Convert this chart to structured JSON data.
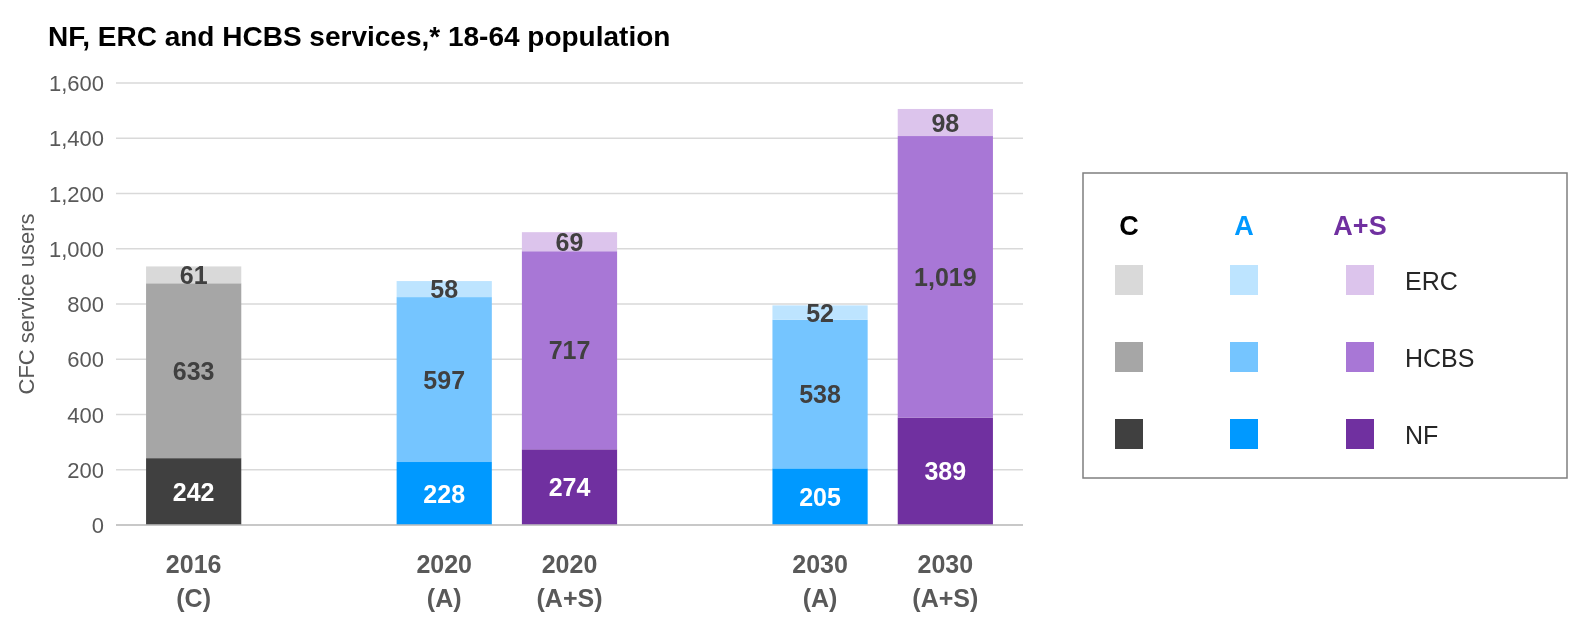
{
  "chart_data": {
    "type": "bar",
    "stacked": true,
    "title": "NF, ERC and HCBS services,* 18-64 population",
    "ylabel": "CFC service users",
    "categories": [
      "2016\n(C)",
      null,
      "2020\n(A)",
      "2020\n(A+S)",
      null,
      "2030\n(A)",
      "2030\n(A+S)"
    ],
    "series": [
      {
        "name": "NF",
        "colors": [
          "#404040",
          null,
          "#0099ff",
          "#7030a0",
          null,
          "#0099ff",
          "#7030a0"
        ],
        "values": [
          242,
          null,
          228,
          274,
          null,
          205,
          389
        ],
        "value_labels": [
          "242",
          null,
          "228",
          "274",
          null,
          "205",
          "389"
        ]
      },
      {
        "name": "HCBS",
        "colors": [
          "#a6a6a6",
          null,
          "#75c5ff",
          "#a877d6",
          null,
          "#75c5ff",
          "#a877d6"
        ],
        "values": [
          633,
          null,
          597,
          717,
          null,
          538,
          1019
        ],
        "value_labels": [
          "633",
          null,
          "597",
          "717",
          null,
          "538",
          "1,019"
        ]
      },
      {
        "name": "ERC",
        "colors": [
          "#d9d9d9",
          null,
          "#bde4ff",
          "#dcc4ec",
          null,
          "#bde4ff",
          "#dcc4ec"
        ],
        "values": [
          61,
          null,
          58,
          69,
          null,
          52,
          98
        ],
        "value_labels": [
          "61",
          null,
          "58",
          "69",
          null,
          "52",
          "98"
        ]
      }
    ],
    "annotations": [
      "C",
      "A",
      "A+S"
    ],
    "ylim": [
      0,
      1600
    ],
    "yticks": [
      0,
      200,
      400,
      600,
      800,
      {
        "value": 1000,
        "label": "1,000"
      },
      {
        "value": 1200,
        "label": "1,200"
      },
      {
        "value": 1400,
        "label": "1,400"
      },
      {
        "value": 1600,
        "label": "1,600"
      }
    ],
    "grid": "y",
    "legend": "right"
  }
}
